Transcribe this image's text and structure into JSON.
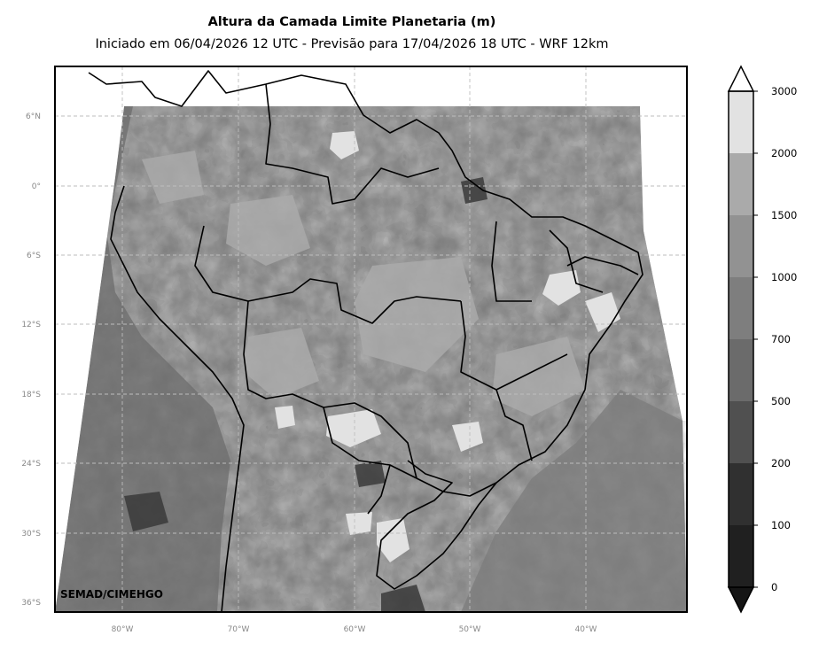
{
  "title": "Altura da Camada Limite Planetaria (m)",
  "subtitle": "Iniciado em 06/04/2026 12 UTC - Previsão para 17/04/2026 18 UTC - WRF 12km",
  "credit": "SEMAD/CIMEHGO",
  "lat_labels": [
    "6°N",
    "0°",
    "6°S",
    "12°S",
    "18°S",
    "24°S",
    "30°S",
    "36°S"
  ],
  "lon_labels": [
    "80°W",
    "70°W",
    "60°W",
    "50°W",
    "40°W"
  ],
  "colorbar": {
    "ticks": [
      "0",
      "100",
      "200",
      "500",
      "700",
      "1000",
      "1500",
      "2000",
      "3000"
    ],
    "colors": [
      "#202020",
      "#303030",
      "#505050",
      "#6b6b6b",
      "#7e7e7e",
      "#929292",
      "#aaaaaa",
      "#e2e2e2"
    ]
  },
  "colors": {
    "map_background": "#7a7a7a",
    "frame": "#000000",
    "grid": "#bdbdbd"
  }
}
